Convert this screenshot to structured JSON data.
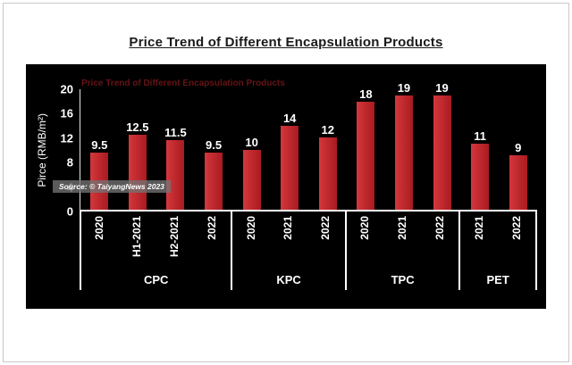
{
  "page": {
    "title": "Price Trend of Different Encapsulation Products"
  },
  "chart_data": {
    "type": "bar",
    "title": "Price Trend of Different Encapsulation Products",
    "panel_title": "Price Trend of Different Encapsulation Products",
    "ylabel": "Pirce (RMB/m²)",
    "xlabel": "",
    "ylim": [
      0,
      20
    ],
    "yticks": [
      0,
      4,
      8,
      12,
      16,
      20
    ],
    "grid": false,
    "legend": "none",
    "background_color": "#000000",
    "bar_color": "#a81b20",
    "bar_color_light": "#d4373c",
    "groups": [
      {
        "label": "CPC",
        "categories": [
          "2020",
          "H1-2021",
          "H2-2021",
          "2022"
        ],
        "values": [
          9.5,
          12.5,
          11.5,
          9.5
        ]
      },
      {
        "label": "KPC",
        "categories": [
          "2020",
          "2021",
          "2022"
        ],
        "values": [
          10,
          14,
          12
        ]
      },
      {
        "label": "TPC",
        "categories": [
          "2020",
          "2021",
          "2022"
        ],
        "values": [
          18,
          19,
          19
        ]
      },
      {
        "label": "PET",
        "categories": [
          "2021",
          "2022"
        ],
        "values": [
          11,
          9
        ]
      }
    ],
    "source": "Source: © TaiyangNews 2023"
  }
}
